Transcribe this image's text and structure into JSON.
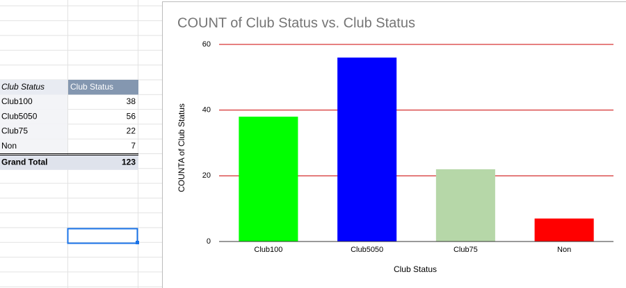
{
  "pivot_table": {
    "headers": [
      "Club Status",
      "Club Status"
    ],
    "rows": [
      [
        "Club100",
        38
      ],
      [
        "Club5050",
        56
      ],
      [
        "Club75",
        22
      ],
      [
        "Non",
        7
      ]
    ],
    "total": [
      "Grand Total",
      123
    ]
  },
  "chart_data": {
    "type": "bar",
    "title": "COUNT of Club Status vs. Club Status",
    "x_label": "Club Status",
    "y_label": "COUNTA of Club Status",
    "categories": [
      "Club100",
      "Club5050",
      "Club75",
      "Non"
    ],
    "values": [
      38,
      56,
      22,
      7
    ],
    "colors": [
      "#00ff00",
      "#0000ff",
      "#b6d7a8",
      "#ff0000"
    ],
    "ylim": [
      0,
      60
    ],
    "yticks": [
      0,
      20,
      40,
      60
    ],
    "grid": true,
    "grid_color": "#cc0000"
  }
}
